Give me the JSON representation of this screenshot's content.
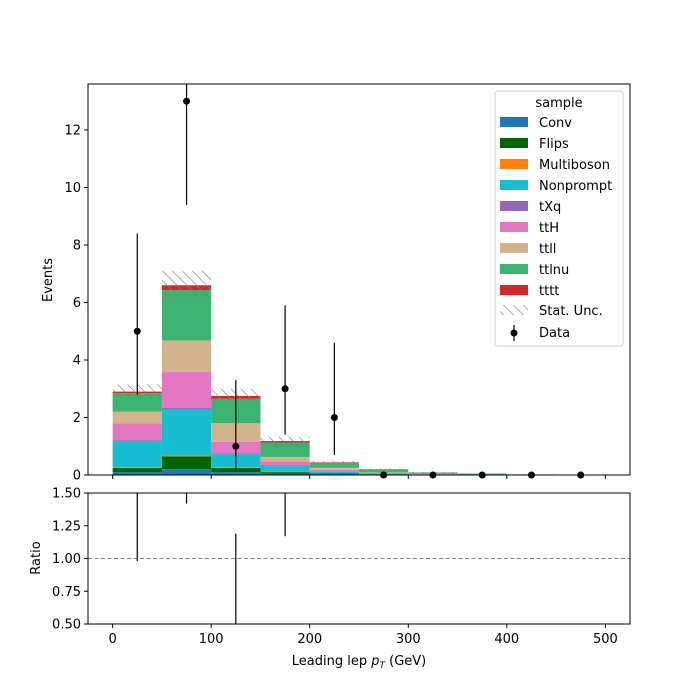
{
  "chart_data": {
    "type": "bar",
    "x_edges": [
      0,
      50,
      100,
      150,
      200,
      250,
      300,
      350,
      400,
      450,
      500
    ],
    "xlabel_main": "Leading lep ",
    "xlabel_sym": "p",
    "xlabel_sub": "T",
    "xlabel_unit": " (GeV)",
    "xlim": [
      -25,
      525
    ],
    "x_ticks": [
      "0",
      "100",
      "200",
      "300",
      "400",
      "500"
    ],
    "top": {
      "ylabel": "Events",
      "ylim": [
        0,
        13.6
      ],
      "y_ticks": [
        "0",
        "2",
        "4",
        "6",
        "8",
        "10",
        "12"
      ]
    },
    "bottom": {
      "ylabel": "Ratio",
      "ylim": [
        0.5,
        1.5
      ],
      "y_ticks": [
        "0.50",
        "0.75",
        "1.00",
        "1.25",
        "1.50"
      ],
      "reference_line": 1.0
    },
    "legend": {
      "title": "sample",
      "placement": "top-right",
      "stat_label": "Stat. Unc.",
      "data_label": "Data"
    },
    "series": [
      {
        "name": "Conv",
        "color": "#1f77b4",
        "values": [
          0.1,
          0.2,
          0.1,
          0.05,
          0.03,
          0.02,
          0.01,
          0.0,
          0.0,
          0.0
        ]
      },
      {
        "name": "Flips",
        "color": "#006400",
        "values": [
          0.15,
          0.45,
          0.15,
          0.05,
          0.03,
          0.01,
          0.0,
          0.0,
          0.0,
          0.0
        ]
      },
      {
        "name": "Multiboson",
        "color": "#ff7f0e",
        "values": [
          0.02,
          0.03,
          0.02,
          0.01,
          0.0,
          0.0,
          0.0,
          0.0,
          0.0,
          0.0
        ]
      },
      {
        "name": "Nonprompt",
        "color": "#17becf",
        "values": [
          0.9,
          1.6,
          0.45,
          0.2,
          0.05,
          0.02,
          0.01,
          0.0,
          0.0,
          0.0
        ]
      },
      {
        "name": "tXq",
        "color": "#9467bd",
        "values": [
          0.03,
          0.05,
          0.03,
          0.02,
          0.01,
          0.0,
          0.0,
          0.0,
          0.0,
          0.0
        ]
      },
      {
        "name": "ttH",
        "color": "#e377c2",
        "values": [
          0.6,
          1.25,
          0.4,
          0.15,
          0.06,
          0.02,
          0.01,
          0.01,
          0.0,
          0.0
        ]
      },
      {
        "name": "ttll",
        "color": "#d2b48c",
        "values": [
          0.4,
          1.1,
          0.65,
          0.15,
          0.07,
          0.02,
          0.01,
          0.01,
          0.0,
          0.0
        ]
      },
      {
        "name": "ttlnu",
        "color": "#3cb371",
        "values": [
          0.65,
          1.75,
          0.85,
          0.5,
          0.17,
          0.1,
          0.05,
          0.03,
          0.02,
          0.01
        ]
      },
      {
        "name": "tttt",
        "color": "#d62728",
        "values": [
          0.05,
          0.17,
          0.1,
          0.05,
          0.02,
          0.01,
          0.0,
          0.0,
          0.0,
          0.0
        ]
      }
    ],
    "stat_unc": [
      0.25,
      0.5,
      0.25,
      0.15,
      0.05,
      0.03,
      0.02,
      0.01,
      0.01,
      0.0
    ],
    "data": {
      "x": [
        25,
        75,
        125,
        175,
        225,
        275,
        325,
        375,
        425,
        475
      ],
      "y": [
        5,
        13,
        1,
        3,
        2,
        0,
        0,
        0,
        0,
        0
      ],
      "err_low": [
        2.2,
        3.6,
        0.8,
        1.6,
        1.3,
        0,
        0,
        0,
        0,
        0
      ],
      "err_high": [
        3.4,
        4.7,
        2.3,
        2.9,
        2.6,
        0,
        0,
        0,
        0,
        0
      ]
    },
    "ratio": {
      "x": [
        25,
        75,
        125,
        175
      ],
      "low": [
        0.98,
        1.42,
        0.33,
        1.17
      ],
      "high": [
        2.9,
        2.2,
        1.19,
        2.3
      ]
    }
  }
}
